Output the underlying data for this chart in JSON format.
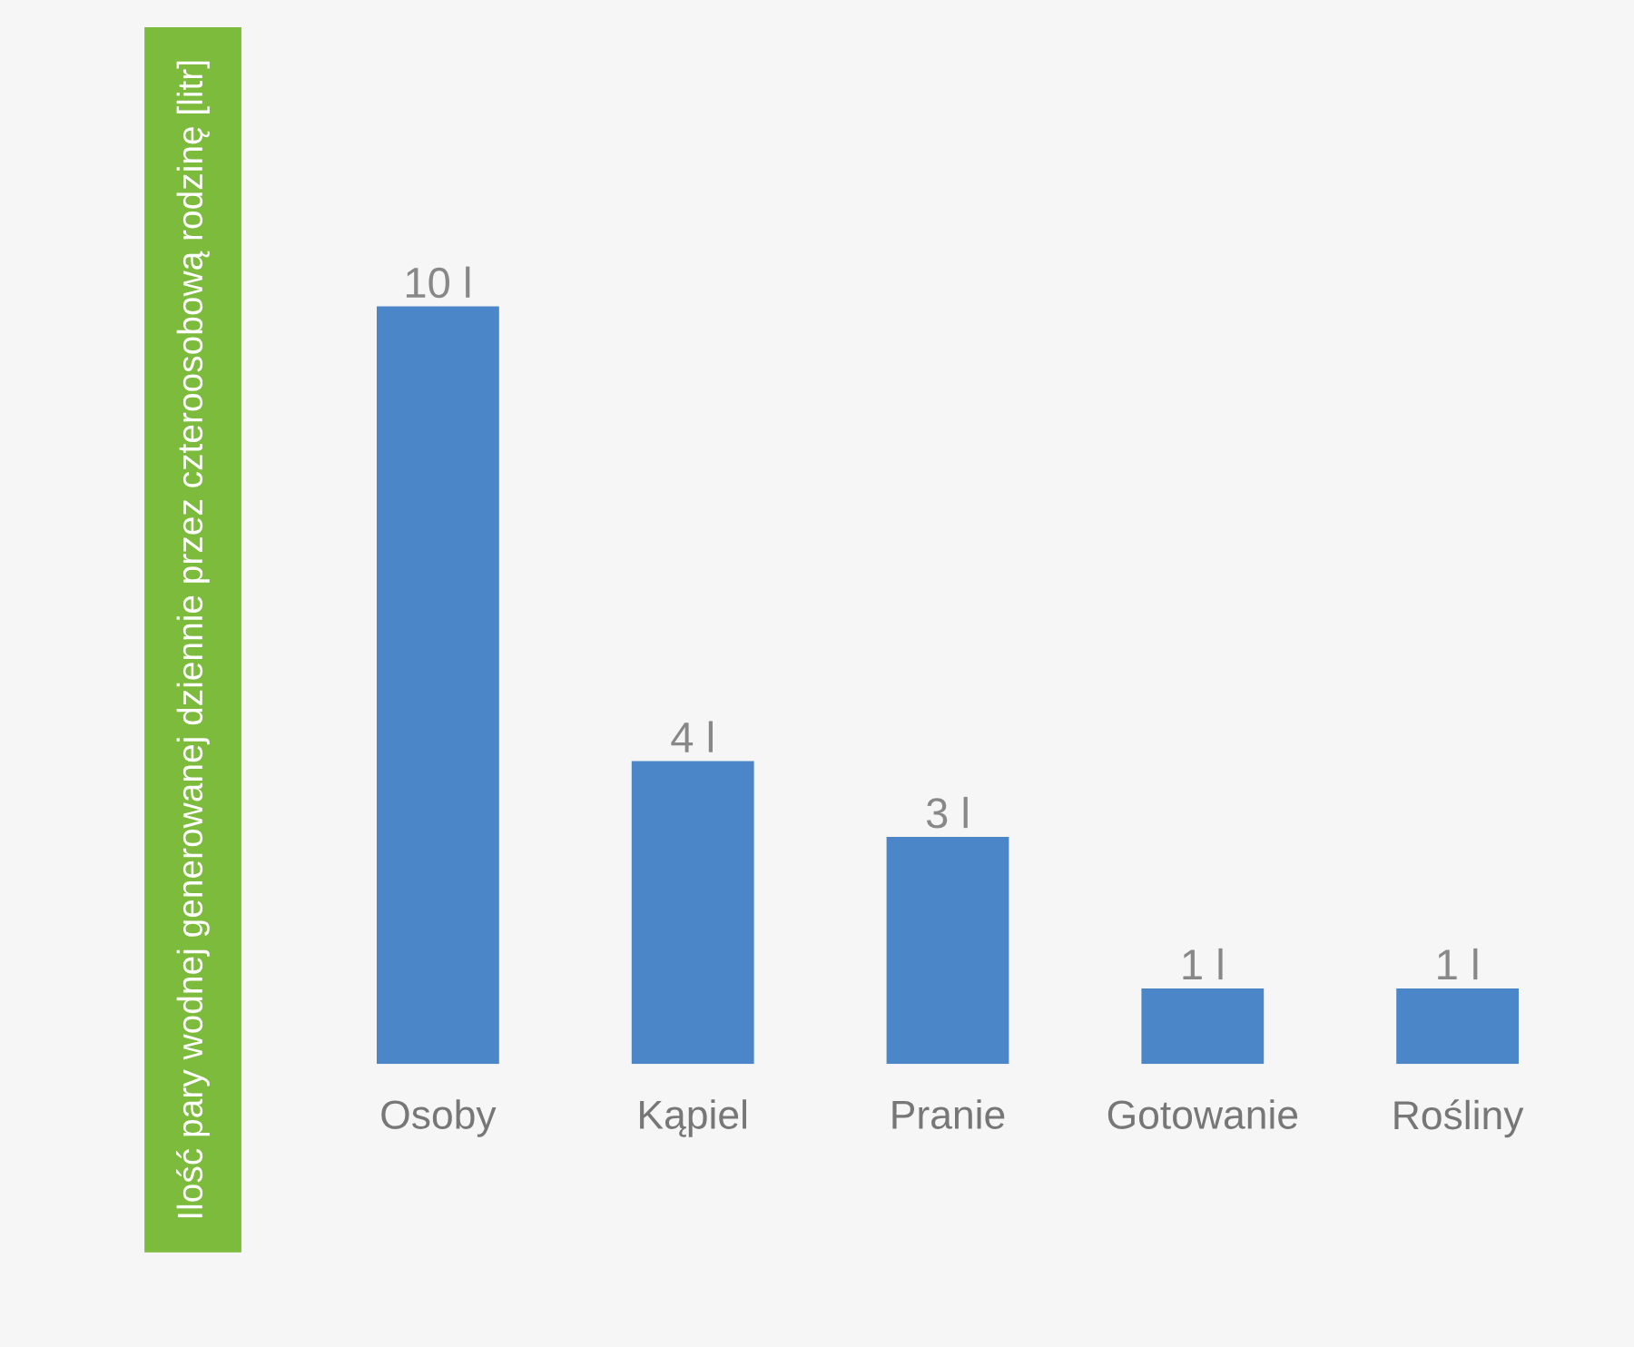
{
  "chart_data": {
    "type": "bar",
    "ylabel": "Ilość pary wodnej generowanej dziennie przez czteroosobową rodzinę [litr]",
    "categories": [
      "Osoby",
      "Kąpiel",
      "Pranie",
      "Gotowanie",
      "Rośliny"
    ],
    "values": [
      10,
      4,
      3,
      1,
      1
    ],
    "value_labels": [
      "10 l",
      "4 l",
      "3 l",
      "1 l",
      "1 l"
    ],
    "color": "#4a86c8",
    "grid": false,
    "legend": false
  }
}
